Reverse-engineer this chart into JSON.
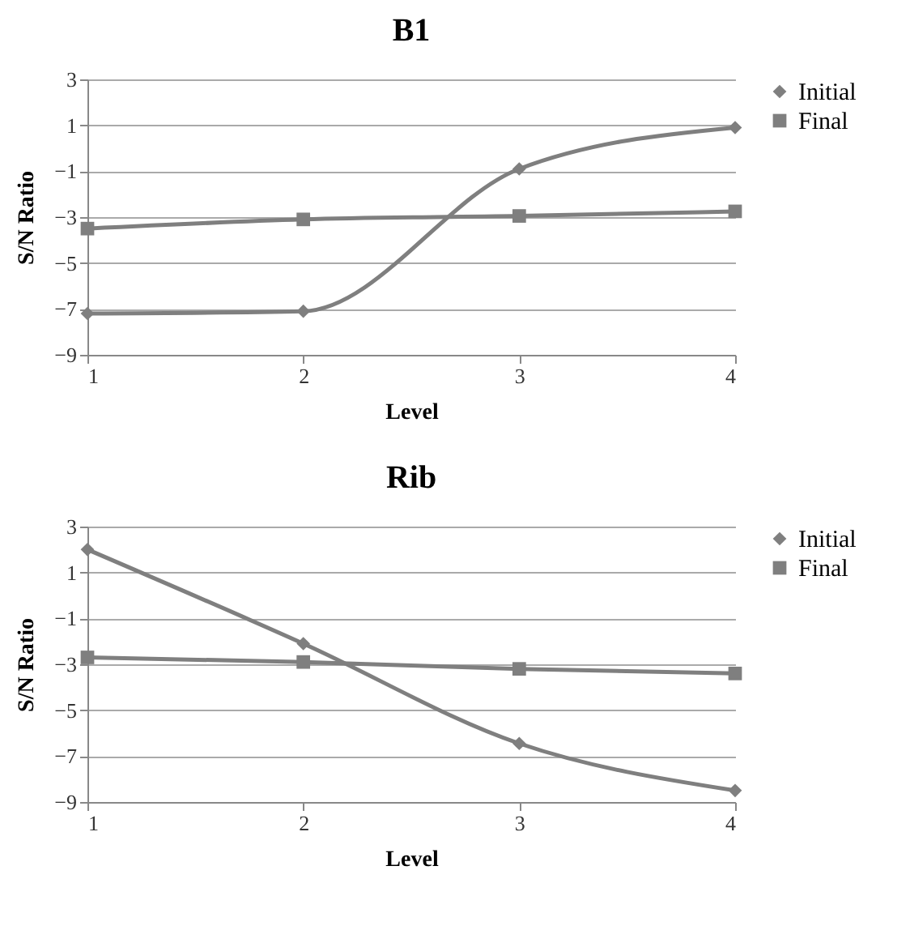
{
  "chart_data": [
    {
      "type": "line",
      "title": "B1",
      "xlabel": "Level",
      "ylabel": "S/N Ratio",
      "x": [
        1,
        2,
        3,
        4
      ],
      "xlim": [
        1,
        4
      ],
      "xticks": [
        1,
        2,
        3,
        4
      ],
      "ylim": [
        -9,
        3
      ],
      "yticks": [
        -9,
        -7,
        -5,
        -3,
        -1,
        1,
        3
      ],
      "grid": "y",
      "legend": "right",
      "series": [
        {
          "name": "Initial",
          "color": "#7f7f7f",
          "marker": "diamond",
          "values": [
            -7.2,
            -7.1,
            -0.9,
            0.9
          ]
        },
        {
          "name": "Final",
          "color": "#7f7f7f",
          "marker": "square",
          "values": [
            -3.5,
            -3.1,
            -2.95,
            -2.75
          ]
        }
      ]
    },
    {
      "type": "line",
      "title": "Rib",
      "xlabel": "Level",
      "ylabel": "S/N Ratio",
      "x": [
        1,
        2,
        3,
        4
      ],
      "xlim": [
        1,
        4
      ],
      "xticks": [
        1,
        2,
        3,
        4
      ],
      "ylim": [
        -9,
        3
      ],
      "yticks": [
        -9,
        -7,
        -5,
        -3,
        -1,
        1,
        3
      ],
      "grid": "y",
      "legend": "right",
      "series": [
        {
          "name": "Initial",
          "color": "#7f7f7f",
          "marker": "diamond",
          "values": [
            2.0,
            -2.1,
            -6.45,
            -8.5
          ]
        },
        {
          "name": "Final",
          "color": "#7f7f7f",
          "marker": "square",
          "values": [
            -2.7,
            -2.9,
            -3.2,
            -3.4
          ]
        }
      ]
    }
  ]
}
